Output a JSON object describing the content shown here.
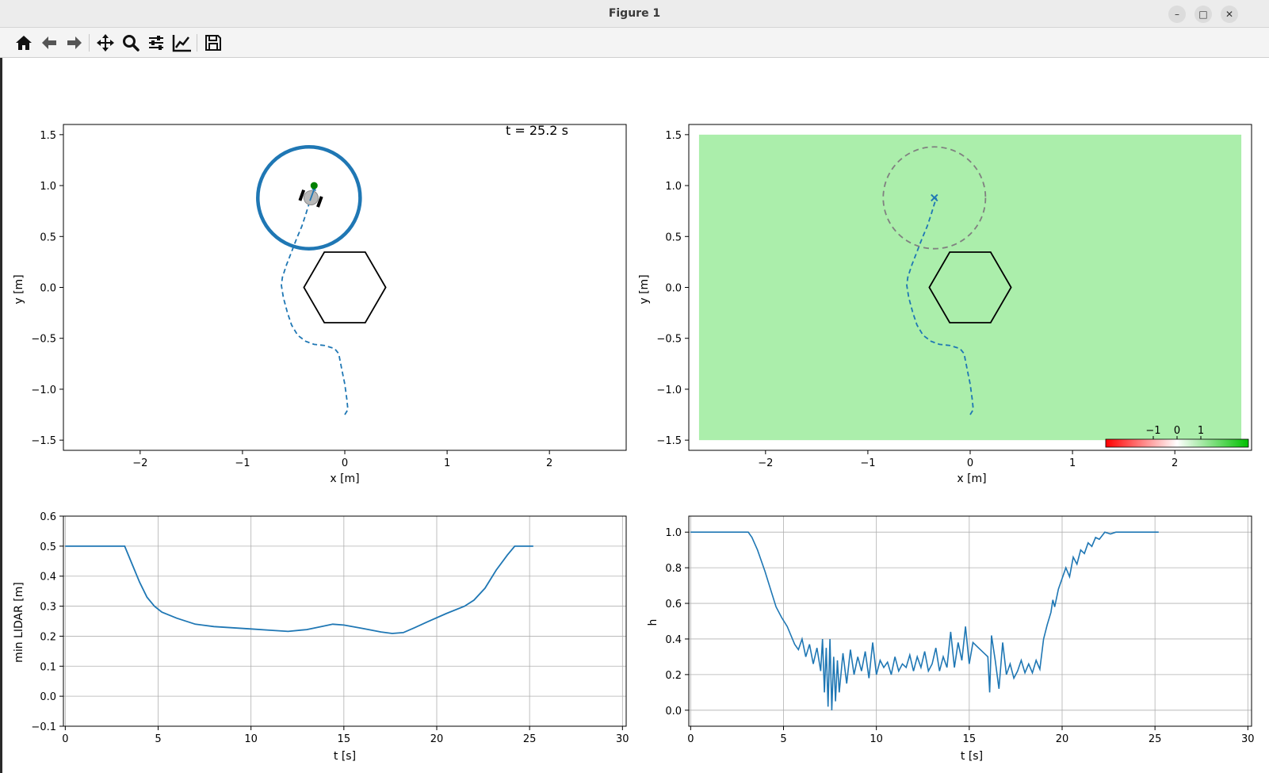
{
  "window": {
    "title": "Figure 1",
    "min_icon": "minimize-icon",
    "max_icon": "maximize-icon",
    "close_icon": "close-icon"
  },
  "toolbar": {
    "items": [
      {
        "icon": "home-icon",
        "label": "Home"
      },
      {
        "icon": "back-arrow-icon",
        "label": "Back"
      },
      {
        "icon": "forward-arrow-icon",
        "label": "Forward"
      },
      {
        "icon": "pan-icon",
        "label": "Pan"
      },
      {
        "icon": "zoom-icon",
        "label": "Zoom"
      },
      {
        "icon": "subplots-icon",
        "label": "Subplots"
      },
      {
        "icon": "edit-axis-icon",
        "label": "Customize"
      },
      {
        "icon": "save-icon",
        "label": "Save"
      }
    ]
  },
  "colors": {
    "line": "#1f77b4",
    "safe_fill": "#abeeab",
    "obstacle": "#000000",
    "goal": "#008000",
    "grid": "#b0b0b0",
    "fov": "#808080"
  },
  "chart_data": [
    {
      "id": "trajectory",
      "type": "line",
      "xlabel": "x [m]",
      "ylabel": "y [m]",
      "xlim": [
        -2.75,
        2.75
      ],
      "ylim": [
        -1.6,
        1.6
      ],
      "xticks": [
        -2,
        -1,
        0,
        1,
        2
      ],
      "yticks": [
        -1.5,
        -1.0,
        -0.5,
        0.0,
        0.5,
        1.0,
        1.5
      ],
      "annotation": "t = 25.2 s",
      "grid": false,
      "path": {
        "x": [
          0.0,
          0.03,
          0.02,
          0.0,
          -0.03,
          -0.06,
          -0.1,
          -0.2,
          -0.3,
          -0.38,
          -0.46,
          -0.52,
          -0.56,
          -0.6,
          -0.62,
          -0.61,
          -0.57,
          -0.52,
          -0.47,
          -0.42,
          -0.38,
          -0.35,
          -0.33
        ],
        "y": [
          -1.25,
          -1.2,
          -1.1,
          -0.95,
          -0.8,
          -0.65,
          -0.6,
          -0.57,
          -0.56,
          -0.53,
          -0.47,
          -0.37,
          -0.25,
          -0.1,
          0.02,
          0.1,
          0.22,
          0.35,
          0.48,
          0.6,
          0.72,
          0.82,
          0.88
        ]
      },
      "lidar_circle": {
        "cx": -0.35,
        "cy": 0.88,
        "r": 0.5
      },
      "robot": {
        "x": -0.33,
        "y": 0.88,
        "heading_deg": 70
      },
      "goal": {
        "x": -0.3,
        "y": 1.0
      },
      "obstacle": {
        "cx": 0.0,
        "cy": 0.0,
        "r": 0.4,
        "sides": 6
      }
    },
    {
      "id": "safety-map",
      "type": "heatmap",
      "xlabel": "x [m]",
      "ylabel": "y [m]",
      "xlim": [
        -2.75,
        2.75
      ],
      "ylim": [
        -1.6,
        1.6
      ],
      "xticks": [
        -2,
        -1,
        0,
        1,
        2
      ],
      "yticks": [
        -1.5,
        -1.0,
        -0.5,
        0.0,
        0.5,
        1.0,
        1.5
      ],
      "field_extent": {
        "x": [
          -2.65,
          2.65
        ],
        "y": [
          -1.5,
          1.5
        ]
      },
      "colorbar": {
        "ticks": [
          -1,
          0,
          1
        ],
        "colors": [
          "#ff0000",
          "#ffffff",
          "#00c000"
        ]
      },
      "grid": false,
      "fov_circle": {
        "cx": -0.35,
        "cy": 0.88,
        "r": 0.5
      },
      "robot_marker": {
        "x": -0.35,
        "y": 0.88
      }
    },
    {
      "id": "min-lidar",
      "type": "line",
      "xlabel": "t [s]",
      "ylabel": "min LIDAR [m]",
      "xlim": [
        -0.1,
        30.2
      ],
      "ylim": [
        -0.1,
        0.6
      ],
      "xticks": [
        0,
        5,
        10,
        15,
        20,
        25,
        30
      ],
      "yticks": [
        -0.1,
        0.0,
        0.1,
        0.2,
        0.3,
        0.4,
        0.5,
        0.6
      ],
      "grid": true,
      "series": [
        {
          "x": [
            0,
            3.2,
            3.6,
            4.0,
            4.4,
            4.8,
            5.2,
            6.0,
            7.0,
            8.0,
            9.0,
            10.0,
            11.0,
            12.0,
            13.0,
            13.8,
            14.4,
            15.0,
            16.0,
            17.0,
            17.6,
            18.2,
            18.8,
            19.5,
            20.5,
            21.5,
            22.0,
            22.6,
            23.2,
            23.8,
            24.2,
            24.6,
            25.2
          ],
          "y": [
            0.5,
            0.5,
            0.44,
            0.38,
            0.33,
            0.3,
            0.28,
            0.26,
            0.24,
            0.232,
            0.228,
            0.224,
            0.22,
            0.216,
            0.222,
            0.232,
            0.24,
            0.237,
            0.226,
            0.214,
            0.209,
            0.212,
            0.228,
            0.248,
            0.275,
            0.3,
            0.32,
            0.36,
            0.42,
            0.47,
            0.5,
            0.5,
            0.5
          ]
        }
      ]
    },
    {
      "id": "cbf-h",
      "type": "line",
      "xlabel": "t [s]",
      "ylabel": "h",
      "xlim": [
        -0.1,
        30.2
      ],
      "ylim": [
        -0.09,
        1.09
      ],
      "xticks": [
        0,
        5,
        10,
        15,
        20,
        25,
        30
      ],
      "yticks": [
        0.0,
        0.2,
        0.4,
        0.6,
        0.8,
        1.0
      ],
      "grid": true,
      "series": [
        {
          "x": [
            0,
            3.1,
            3.3,
            3.6,
            4.0,
            4.3,
            4.6,
            4.9,
            5.2,
            5.4,
            5.6,
            5.8,
            6.0,
            6.2,
            6.4,
            6.6,
            6.8,
            7.0,
            7.1,
            7.2,
            7.3,
            7.4,
            7.5,
            7.6,
            7.7,
            7.8,
            7.9,
            8.0,
            8.2,
            8.4,
            8.6,
            8.8,
            9.0,
            9.2,
            9.4,
            9.6,
            9.8,
            10.0,
            10.2,
            10.4,
            10.6,
            10.8,
            11.0,
            11.2,
            11.4,
            11.6,
            11.8,
            12.0,
            12.2,
            12.4,
            12.6,
            12.8,
            13.0,
            13.2,
            13.4,
            13.6,
            13.8,
            14.0,
            14.2,
            14.4,
            14.6,
            14.8,
            15.0,
            15.2,
            15.5,
            15.8,
            16.0,
            16.1,
            16.2,
            16.4,
            16.6,
            16.8,
            17.0,
            17.2,
            17.4,
            17.6,
            17.8,
            18.0,
            18.2,
            18.4,
            18.6,
            18.8,
            19.0,
            19.2,
            19.4,
            19.5,
            19.6,
            19.8,
            20.0,
            20.2,
            20.4,
            20.6,
            20.8,
            21.0,
            21.2,
            21.4,
            21.6,
            21.8,
            22.0,
            22.3,
            22.6,
            22.9,
            23.2,
            23.5,
            24.0,
            25.2
          ],
          "y": [
            1.0,
            1.0,
            0.97,
            0.9,
            0.78,
            0.68,
            0.58,
            0.52,
            0.47,
            0.42,
            0.37,
            0.34,
            0.4,
            0.3,
            0.37,
            0.26,
            0.35,
            0.22,
            0.4,
            0.1,
            0.35,
            0.02,
            0.4,
            0.0,
            0.3,
            0.05,
            0.28,
            0.1,
            0.32,
            0.15,
            0.34,
            0.2,
            0.3,
            0.22,
            0.33,
            0.18,
            0.38,
            0.2,
            0.28,
            0.24,
            0.27,
            0.2,
            0.3,
            0.22,
            0.26,
            0.24,
            0.31,
            0.22,
            0.3,
            0.24,
            0.33,
            0.22,
            0.26,
            0.35,
            0.22,
            0.3,
            0.24,
            0.44,
            0.24,
            0.38,
            0.28,
            0.47,
            0.26,
            0.38,
            0.35,
            0.32,
            0.3,
            0.1,
            0.42,
            0.28,
            0.12,
            0.38,
            0.2,
            0.26,
            0.18,
            0.22,
            0.28,
            0.21,
            0.26,
            0.21,
            0.28,
            0.23,
            0.4,
            0.48,
            0.55,
            0.62,
            0.58,
            0.68,
            0.74,
            0.8,
            0.75,
            0.86,
            0.82,
            0.9,
            0.88,
            0.94,
            0.92,
            0.97,
            0.96,
            1.0,
            0.99,
            1.0,
            1.0,
            1.0,
            1.0,
            1.0
          ]
        }
      ]
    }
  ]
}
